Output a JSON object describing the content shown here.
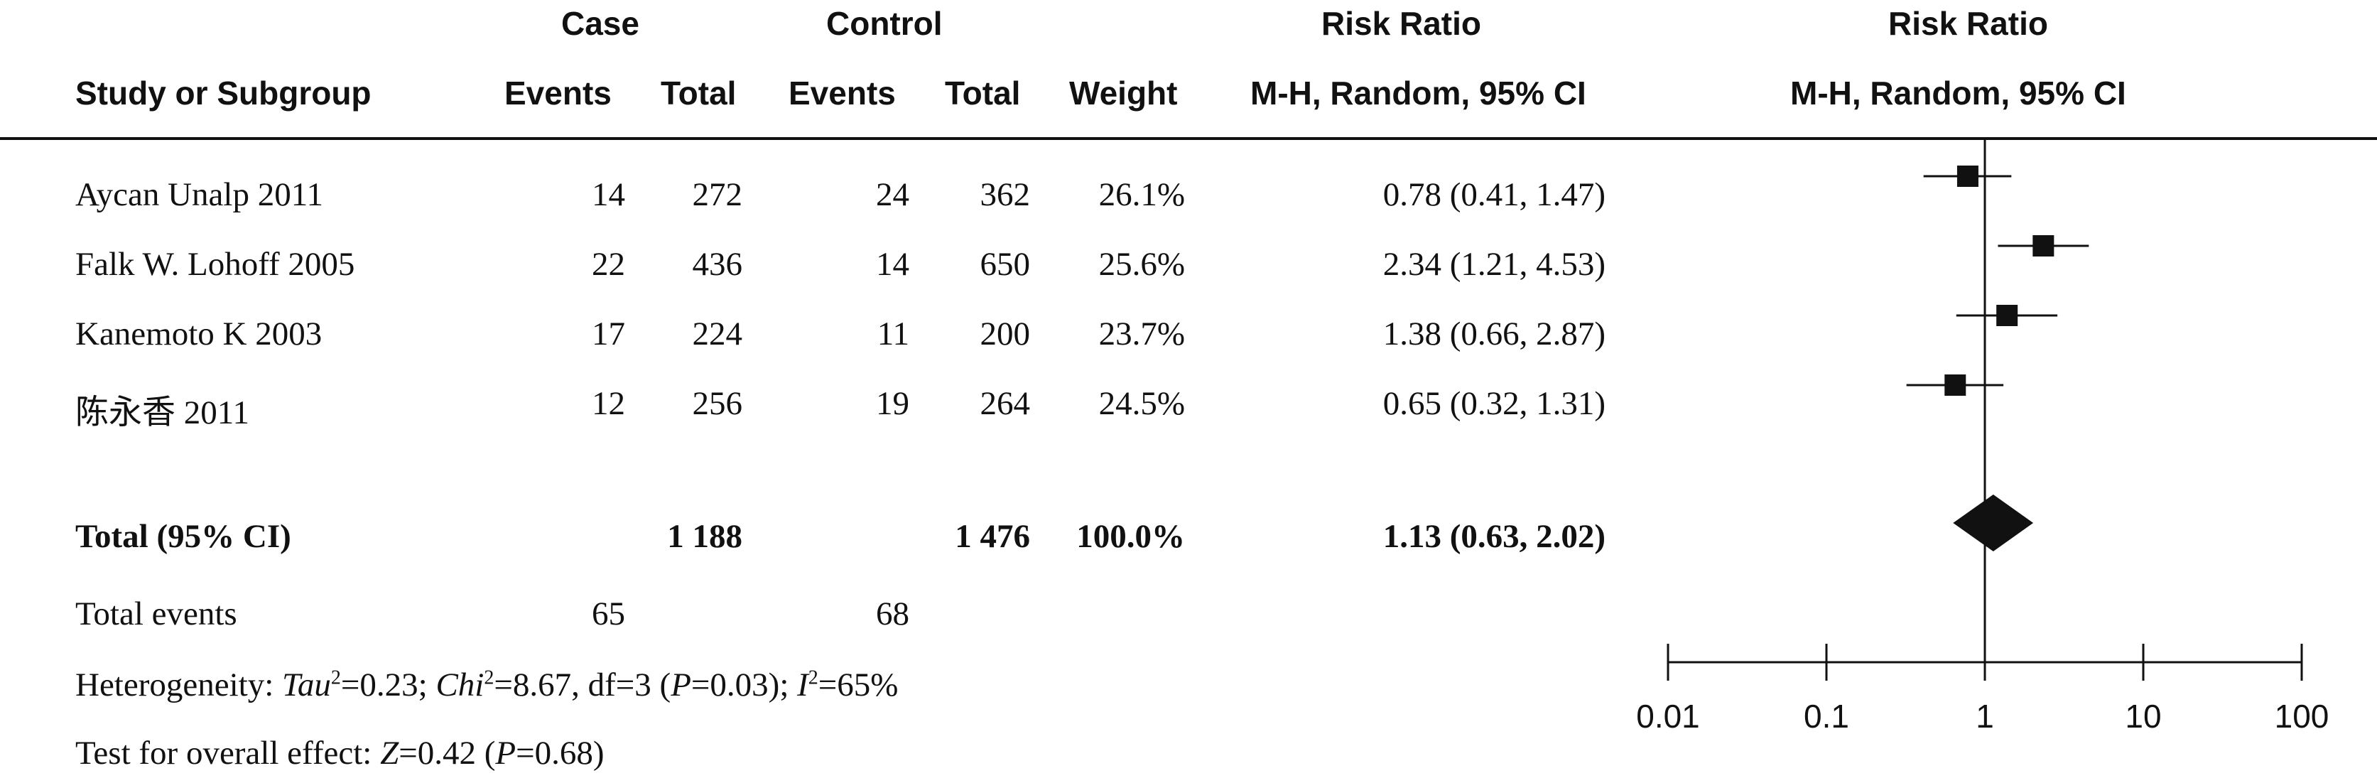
{
  "headers": {
    "case": "Case",
    "control": "Control",
    "risk_ratio_left": "Risk Ratio",
    "risk_ratio_right": "Risk Ratio",
    "study": "Study or Subgroup",
    "case_events": "Events",
    "case_total": "Total",
    "control_events": "Events",
    "control_total": "Total",
    "weight": "Weight",
    "method_left": "M-H, Random, 95% CI",
    "method_right": "M-H, Random, 95% CI"
  },
  "studies": [
    {
      "name": "Aycan Unalp 2011",
      "case_events": "14",
      "case_total": "272",
      "control_events": "24",
      "control_total": "362",
      "weight": "26.1%",
      "ci_text": "0.78 (0.41, 1.47)"
    },
    {
      "name": "Falk W. Lohoff  2005",
      "case_events": "22",
      "case_total": "436",
      "control_events": "14",
      "control_total": "650",
      "weight": "25.6%",
      "ci_text": "2.34 (1.21, 4.53)"
    },
    {
      "name": "Kanemoto K 2003",
      "case_events": "17",
      "case_total": "224",
      "control_events": "11",
      "control_total": "200",
      "weight": "23.7%",
      "ci_text": "1.38 (0.66, 2.87)"
    },
    {
      "name": "陈永香 2011",
      "case_events": "12",
      "case_total": "256",
      "control_events": "19",
      "control_total": "264",
      "weight": "24.5%",
      "ci_text": "0.65 (0.32, 1.31)"
    }
  ],
  "total": {
    "label": "Total (95% CI)",
    "case_total": "1 188",
    "control_total": "1 476",
    "weight": "100.0%",
    "ci_text": "1.13 (0.63, 2.02)"
  },
  "total_events": {
    "label": "Total events",
    "case": "65",
    "control": "68"
  },
  "heterogeneity": {
    "prefix": "Heterogeneity: ",
    "tau_label": "Tau",
    "tau_value": "=0.23; ",
    "chi_label": "Chi",
    "chi_value": "=8.67, df=3 (",
    "p_label": "P",
    "p_value": "=0.03); ",
    "i_label": "I",
    "i_value": "=65%",
    "sup": "2"
  },
  "overall_effect": {
    "prefix": "Test for overall effect: ",
    "z_label": "Z",
    "z_value": "=0.42 (",
    "p_label": "P",
    "p_value": "=0.68)"
  },
  "chart_data": {
    "type": "forest",
    "x_scale": "log",
    "x_ticks": [
      0.01,
      0.1,
      1,
      10,
      100
    ],
    "x_tick_labels": [
      "0.01",
      "0.1",
      "1",
      "10",
      "100"
    ],
    "reference_line": 1,
    "studies": [
      {
        "rr": 0.78,
        "lower": 0.41,
        "upper": 1.47
      },
      {
        "rr": 2.34,
        "lower": 1.21,
        "upper": 4.53
      },
      {
        "rr": 1.38,
        "lower": 0.66,
        "upper": 2.87
      },
      {
        "rr": 0.65,
        "lower": 0.32,
        "upper": 1.31
      }
    ],
    "pooled": {
      "rr": 1.13,
      "lower": 0.63,
      "upper": 2.02
    }
  }
}
